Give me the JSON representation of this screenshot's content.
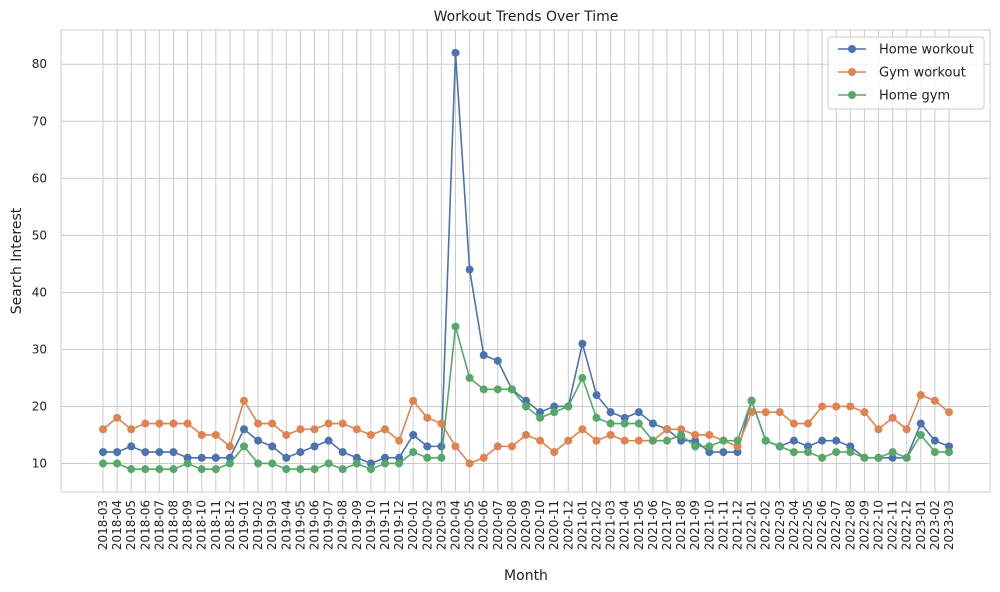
{
  "chart_data": {
    "type": "line",
    "title": "Workout Trends Over Time",
    "xlabel": "Month",
    "ylabel": "Search Interest",
    "ylim": [
      5,
      86
    ],
    "yticks": [
      10,
      20,
      30,
      40,
      50,
      60,
      70,
      80
    ],
    "grid": true,
    "legend_position": "top-right",
    "categories": [
      "2018-03",
      "2018-04",
      "2018-05",
      "2018-06",
      "2018-07",
      "2018-08",
      "2018-09",
      "2018-10",
      "2018-11",
      "2018-12",
      "2019-01",
      "2019-02",
      "2019-03",
      "2019-04",
      "2019-05",
      "2019-06",
      "2019-07",
      "2019-08",
      "2019-09",
      "2019-10",
      "2019-11",
      "2019-12",
      "2020-01",
      "2020-02",
      "2020-03",
      "2020-04",
      "2020-05",
      "2020-06",
      "2020-07",
      "2020-08",
      "2020-09",
      "2020-10",
      "2020-11",
      "2020-12",
      "2021-01",
      "2021-02",
      "2021-03",
      "2021-04",
      "2021-05",
      "2021-06",
      "2021-07",
      "2021-08",
      "2021-09",
      "2021-10",
      "2021-11",
      "2021-12",
      "2022-01",
      "2022-02",
      "2022-03",
      "2022-04",
      "2022-05",
      "2022-06",
      "2022-07",
      "2022-08",
      "2022-09",
      "2022-10",
      "2022-11",
      "2022-12",
      "2023-01",
      "2023-02",
      "2023-03"
    ],
    "series": [
      {
        "name": "Home workout",
        "color": "#4c72b0",
        "values": [
          12,
          12,
          13,
          12,
          12,
          12,
          11,
          11,
          11,
          11,
          16,
          14,
          13,
          11,
          12,
          13,
          14,
          12,
          11,
          10,
          11,
          11,
          15,
          13,
          13,
          82,
          44,
          29,
          28,
          23,
          21,
          19,
          20,
          20,
          31,
          22,
          19,
          18,
          19,
          17,
          16,
          14,
          14,
          12,
          12,
          12,
          21,
          14,
          13,
          14,
          13,
          14,
          14,
          13,
          11,
          11,
          11,
          11,
          17,
          14,
          13
        ]
      },
      {
        "name": "Gym workout",
        "color": "#dd8452",
        "values": [
          16,
          18,
          16,
          17,
          17,
          17,
          17,
          15,
          15,
          13,
          21,
          17,
          17,
          15,
          16,
          16,
          17,
          17,
          16,
          15,
          16,
          14,
          21,
          18,
          17,
          13,
          10,
          11,
          13,
          13,
          15,
          14,
          12,
          14,
          16,
          14,
          15,
          14,
          14,
          14,
          16,
          16,
          15,
          15,
          14,
          13,
          19,
          19,
          19,
          17,
          17,
          20,
          20,
          20,
          19,
          16,
          18,
          16,
          22,
          21,
          19
        ]
      },
      {
        "name": "Home gym",
        "color": "#55a868",
        "values": [
          10,
          10,
          9,
          9,
          9,
          9,
          10,
          9,
          9,
          10,
          13,
          10,
          10,
          9,
          9,
          9,
          10,
          9,
          10,
          9,
          10,
          10,
          12,
          11,
          11,
          34,
          25,
          23,
          23,
          23,
          20,
          18,
          19,
          20,
          25,
          18,
          17,
          17,
          17,
          14,
          14,
          15,
          13,
          13,
          14,
          14,
          21,
          14,
          13,
          12,
          12,
          11,
          12,
          12,
          11,
          11,
          12,
          11,
          15,
          12,
          12
        ]
      }
    ]
  }
}
